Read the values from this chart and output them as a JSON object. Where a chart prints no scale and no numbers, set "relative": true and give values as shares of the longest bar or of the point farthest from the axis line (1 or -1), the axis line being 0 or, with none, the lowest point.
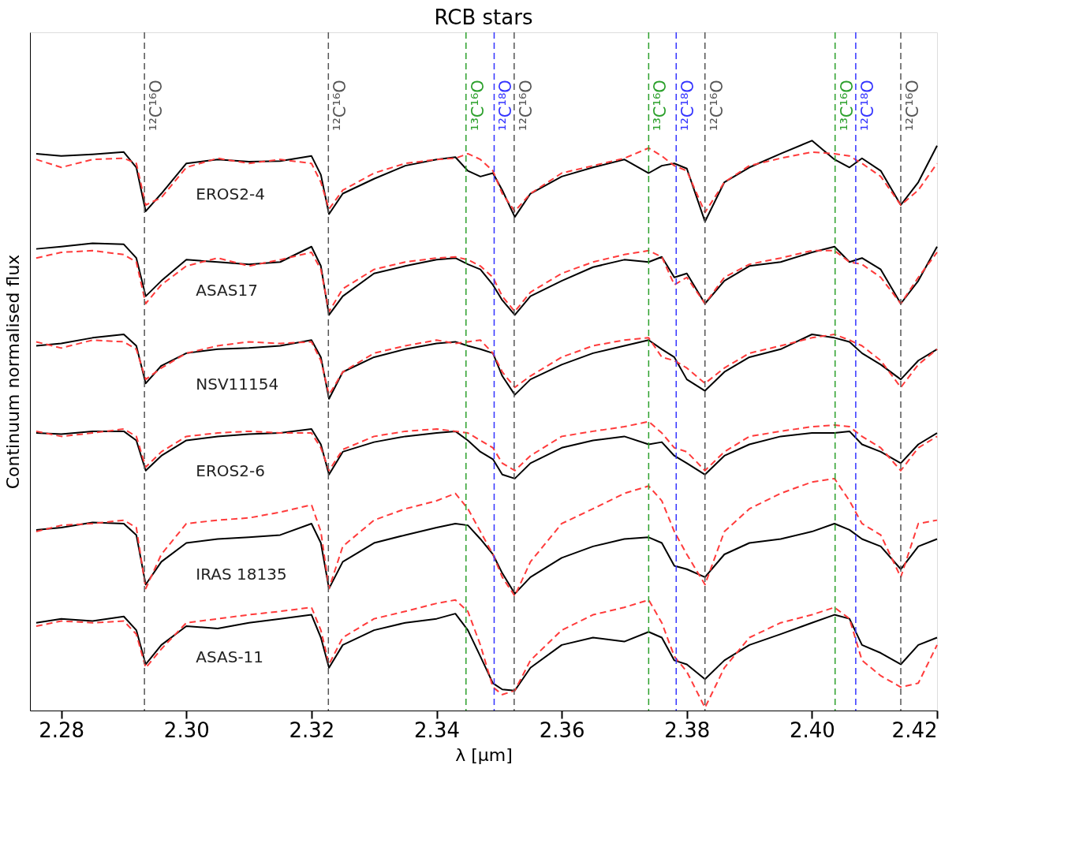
{
  "chart_data": {
    "type": "line",
    "title": "RCB stars",
    "xlabel": "λ [μm]",
    "ylabel": "Continuum normalised flux",
    "relative": true,
    "legend": false,
    "grid": false,
    "xlim": [
      2.275,
      2.42
    ],
    "xticks": [
      2.28,
      {
        "value": 2.3,
        "label": "2.30"
      },
      2.32,
      2.34,
      2.36,
      2.38,
      {
        "value": 2.4,
        "label": "2.40"
      },
      2.42
    ],
    "x": [
      2.276,
      2.28,
      2.285,
      2.29,
      2.292,
      2.2935,
      2.296,
      2.3,
      2.305,
      2.31,
      2.315,
      2.32,
      2.3215,
      2.3228,
      2.325,
      2.33,
      2.335,
      2.34,
      2.343,
      2.345,
      2.347,
      2.349,
      2.3505,
      2.3525,
      2.355,
      2.36,
      2.365,
      2.37,
      2.3739,
      2.376,
      2.378,
      2.38,
      2.3829,
      2.386,
      2.39,
      2.395,
      2.4,
      2.4036,
      2.406,
      2.408,
      2.411,
      2.4142,
      2.417,
      2.42
    ],
    "series": [
      {
        "name": "EROS2-4",
        "color": "#000000",
        "line_style": "solid",
        "values": [
          0.977,
          0.973,
          0.976,
          0.98,
          0.953,
          0.876,
          0.907,
          0.96,
          0.967,
          0.963,
          0.964,
          0.973,
          0.94,
          0.871,
          0.907,
          0.933,
          0.956,
          0.967,
          0.971,
          0.947,
          0.937,
          0.943,
          0.913,
          0.866,
          0.907,
          0.937,
          0.953,
          0.967,
          0.943,
          0.956,
          0.96,
          0.951,
          0.858,
          0.927,
          0.953,
          0.977,
          1.0,
          0.967,
          0.953,
          0.969,
          0.947,
          0.887,
          0.927,
          0.991
        ]
      },
      {
        "color": "#ff3b3b",
        "line_style": "dashed",
        "values": [
          0.967,
          0.953,
          0.967,
          0.969,
          0.96,
          0.887,
          0.9,
          0.953,
          0.969,
          0.96,
          0.967,
          0.96,
          0.927,
          0.88,
          0.913,
          0.943,
          0.96,
          0.967,
          0.969,
          0.977,
          0.967,
          0.947,
          0.907,
          0.876,
          0.907,
          0.943,
          0.956,
          0.969,
          0.987,
          0.973,
          0.956,
          0.947,
          0.874,
          0.927,
          0.956,
          0.969,
          0.98,
          0.977,
          0.973,
          0.96,
          0.937,
          0.887,
          0.913,
          0.96
        ]
      },
      {
        "name": "ASAS17",
        "color": "#000000",
        "line_style": "solid",
        "values": [
          0.81,
          0.814,
          0.82,
          0.818,
          0.794,
          0.727,
          0.754,
          0.791,
          0.787,
          0.783,
          0.787,
          0.814,
          0.78,
          0.694,
          0.727,
          0.767,
          0.78,
          0.791,
          0.794,
          0.783,
          0.774,
          0.747,
          0.72,
          0.694,
          0.727,
          0.754,
          0.778,
          0.791,
          0.787,
          0.796,
          0.76,
          0.767,
          0.714,
          0.754,
          0.78,
          0.787,
          0.804,
          0.814,
          0.787,
          0.794,
          0.774,
          0.714,
          0.754,
          0.814
        ]
      },
      {
        "color": "#ff3b3b",
        "line_style": "dashed",
        "values": [
          0.794,
          0.804,
          0.807,
          0.8,
          0.787,
          0.714,
          0.747,
          0.78,
          0.794,
          0.78,
          0.791,
          0.804,
          0.774,
          0.7,
          0.74,
          0.774,
          0.787,
          0.794,
          0.796,
          0.791,
          0.78,
          0.76,
          0.727,
          0.7,
          0.734,
          0.767,
          0.787,
          0.8,
          0.807,
          0.796,
          0.747,
          0.76,
          0.714,
          0.76,
          0.783,
          0.794,
          0.807,
          0.807,
          0.787,
          0.783,
          0.76,
          0.714,
          0.76,
          0.804
        ]
      },
      {
        "name": "NSV11154",
        "color": "#000000",
        "line_style": "solid",
        "values": [
          0.64,
          0.644,
          0.654,
          0.66,
          0.64,
          0.574,
          0.605,
          0.627,
          0.634,
          0.636,
          0.64,
          0.65,
          0.62,
          0.547,
          0.594,
          0.62,
          0.634,
          0.644,
          0.647,
          0.64,
          0.634,
          0.627,
          0.587,
          0.554,
          0.581,
          0.607,
          0.627,
          0.64,
          0.65,
          0.634,
          0.62,
          0.581,
          0.561,
          0.594,
          0.62,
          0.634,
          0.66,
          0.654,
          0.647,
          0.627,
          0.607,
          0.581,
          0.614,
          0.634
        ]
      },
      {
        "color": "#ff3b3b",
        "line_style": "dashed",
        "values": [
          0.647,
          0.636,
          0.65,
          0.647,
          0.634,
          0.581,
          0.601,
          0.627,
          0.64,
          0.647,
          0.644,
          0.647,
          0.614,
          0.554,
          0.594,
          0.627,
          0.64,
          0.65,
          0.644,
          0.647,
          0.65,
          0.627,
          0.594,
          0.567,
          0.587,
          0.62,
          0.64,
          0.65,
          0.654,
          0.62,
          0.614,
          0.601,
          0.574,
          0.601,
          0.627,
          0.64,
          0.654,
          0.66,
          0.65,
          0.64,
          0.614,
          0.567,
          0.607,
          0.634
        ]
      },
      {
        "name": "EROS2-6",
        "color": "#000000",
        "line_style": "solid",
        "values": [
          0.487,
          0.485,
          0.49,
          0.49,
          0.474,
          0.421,
          0.447,
          0.474,
          0.481,
          0.485,
          0.487,
          0.494,
          0.467,
          0.414,
          0.454,
          0.471,
          0.481,
          0.487,
          0.49,
          0.474,
          0.454,
          0.441,
          0.414,
          0.407,
          0.434,
          0.461,
          0.474,
          0.481,
          0.467,
          0.471,
          0.447,
          0.434,
          0.414,
          0.447,
          0.467,
          0.481,
          0.487,
          0.487,
          0.49,
          0.467,
          0.454,
          0.434,
          0.467,
          0.487
        ]
      },
      {
        "color": "#ff3b3b",
        "line_style": "dashed",
        "values": [
          0.49,
          0.481,
          0.487,
          0.494,
          0.481,
          0.427,
          0.454,
          0.481,
          0.487,
          0.49,
          0.487,
          0.487,
          0.461,
          0.421,
          0.458,
          0.481,
          0.49,
          0.494,
          0.49,
          0.487,
          0.474,
          0.461,
          0.434,
          0.421,
          0.447,
          0.481,
          0.49,
          0.498,
          0.507,
          0.487,
          0.461,
          0.454,
          0.421,
          0.454,
          0.481,
          0.49,
          0.498,
          0.501,
          0.498,
          0.481,
          0.461,
          0.421,
          0.461,
          0.481
        ]
      },
      {
        "name": "IRAS 18135",
        "color": "#000000",
        "line_style": "solid",
        "values": [
          0.317,
          0.321,
          0.33,
          0.328,
          0.308,
          0.221,
          0.261,
          0.294,
          0.301,
          0.304,
          0.308,
          0.328,
          0.294,
          0.214,
          0.261,
          0.294,
          0.308,
          0.321,
          0.328,
          0.325,
          0.301,
          0.274,
          0.241,
          0.205,
          0.234,
          0.268,
          0.288,
          0.301,
          0.304,
          0.294,
          0.254,
          0.248,
          0.234,
          0.274,
          0.294,
          0.301,
          0.314,
          0.328,
          0.317,
          0.301,
          0.288,
          0.248,
          0.288,
          0.301
        ]
      },
      {
        "color": "#ff3b3b",
        "line_style": "dashed",
        "values": [
          0.314,
          0.325,
          0.328,
          0.334,
          0.321,
          0.214,
          0.274,
          0.328,
          0.334,
          0.338,
          0.348,
          0.361,
          0.314,
          0.214,
          0.288,
          0.334,
          0.354,
          0.368,
          0.381,
          0.354,
          0.314,
          0.274,
          0.234,
          0.201,
          0.261,
          0.328,
          0.354,
          0.381,
          0.394,
          0.368,
          0.314,
          0.274,
          0.221,
          0.314,
          0.354,
          0.381,
          0.401,
          0.407,
          0.368,
          0.328,
          0.308,
          0.234,
          0.328,
          0.334
        ]
      },
      {
        "name": "ASAS-11",
        "color": "#000000",
        "line_style": "solid",
        "values": [
          0.154,
          0.161,
          0.157,
          0.165,
          0.141,
          0.081,
          0.115,
          0.148,
          0.144,
          0.154,
          0.161,
          0.168,
          0.128,
          0.075,
          0.115,
          0.141,
          0.154,
          0.161,
          0.17,
          0.141,
          0.095,
          0.048,
          0.037,
          0.035,
          0.075,
          0.115,
          0.128,
          0.121,
          0.138,
          0.128,
          0.088,
          0.081,
          0.055,
          0.088,
          0.115,
          0.134,
          0.154,
          0.168,
          0.161,
          0.115,
          0.101,
          0.081,
          0.115,
          0.128
        ]
      },
      {
        "color": "#ff3b3b",
        "line_style": "dashed",
        "values": [
          0.148,
          0.157,
          0.154,
          0.157,
          0.134,
          0.075,
          0.108,
          0.154,
          0.161,
          0.168,
          0.174,
          0.181,
          0.141,
          0.081,
          0.128,
          0.161,
          0.174,
          0.188,
          0.194,
          0.174,
          0.115,
          0.041,
          0.028,
          0.035,
          0.088,
          0.141,
          0.168,
          0.181,
          0.194,
          0.154,
          0.095,
          0.068,
          0.005,
          0.075,
          0.128,
          0.154,
          0.168,
          0.181,
          0.161,
          0.088,
          0.061,
          0.041,
          0.048,
          0.115
        ]
      }
    ],
    "ref_lines": [
      {
        "axis": "x",
        "value": 2.2933,
        "label": "¹²C¹⁶O",
        "color": "#555555",
        "line_style": "dashed"
      },
      {
        "axis": "x",
        "value": 2.3227,
        "label": "¹²C¹⁶O",
        "color": "#555555",
        "line_style": "dashed"
      },
      {
        "axis": "x",
        "value": 2.3447,
        "label": "¹³C¹⁶O",
        "color": "#2ca02c",
        "line_style": "dashed"
      },
      {
        "axis": "x",
        "value": 2.3492,
        "label": "¹²C¹⁸O",
        "color": "#3333ff",
        "line_style": "dashed"
      },
      {
        "axis": "x",
        "value": 2.3524,
        "label": "¹²C¹⁶O",
        "color": "#555555",
        "line_style": "dashed"
      },
      {
        "axis": "x",
        "value": 2.3739,
        "label": "¹³C¹⁶O",
        "color": "#2ca02c",
        "line_style": "dashed"
      },
      {
        "axis": "x",
        "value": 2.3783,
        "label": "¹²C¹⁸O",
        "color": "#3333ff",
        "line_style": "dashed"
      },
      {
        "axis": "x",
        "value": 2.3829,
        "label": "¹²C¹⁶O",
        "color": "#555555",
        "line_style": "dashed"
      },
      {
        "axis": "x",
        "value": 2.4037,
        "label": "¹³C¹⁶O",
        "color": "#2ca02c",
        "line_style": "dashed"
      },
      {
        "axis": "x",
        "value": 2.407,
        "label": "¹²C¹⁸O",
        "color": "#3333ff",
        "line_style": "dashed"
      },
      {
        "axis": "x",
        "value": 2.4142,
        "label": "¹²C¹⁶O",
        "color": "#555555",
        "line_style": "dashed"
      }
    ]
  }
}
